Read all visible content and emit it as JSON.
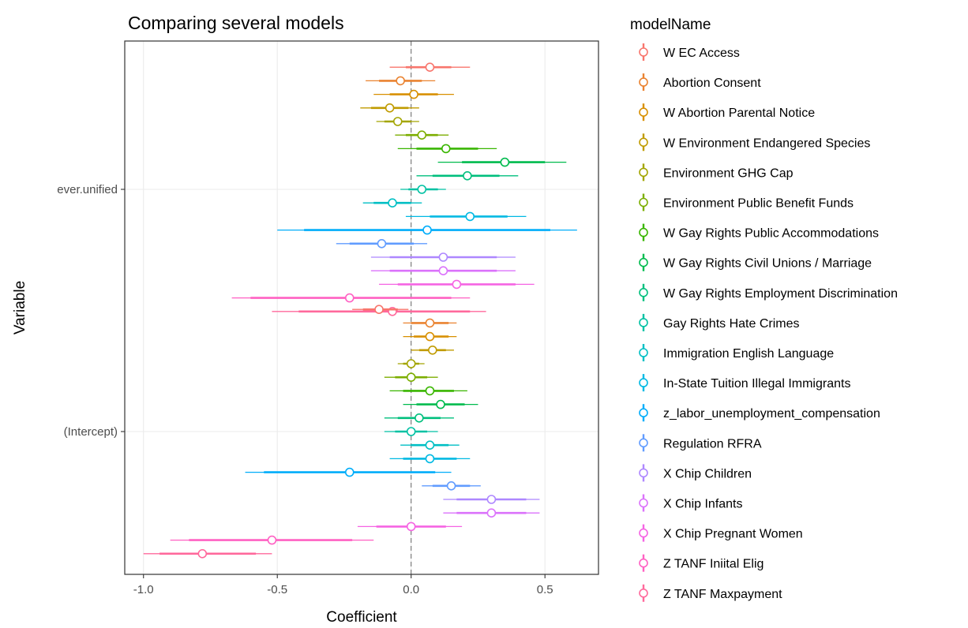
{
  "chart_data": {
    "type": "scatter",
    "title": "Comparing several models",
    "xlabel": "Coefficient",
    "ylabel": "Variable",
    "xlim": [
      -1.07,
      0.7
    ],
    "xticks": [
      -1.0,
      -0.5,
      0.0,
      0.5
    ],
    "xtick_labels": [
      "-1.0",
      "-0.5",
      "0.0",
      "0.5"
    ],
    "categories": [
      "ever.unified",
      "(Intercept)"
    ],
    "reference_line": 0,
    "grid": true,
    "legend_title": "modelName",
    "legend_position": "right",
    "series": [
      {
        "name": "W EC Access",
        "color": "#F8766D",
        "estimates": [
          0.07,
          -0.12
        ],
        "inner": [
          [
            -0.02,
            0.15
          ],
          [
            -0.18,
            -0.05
          ]
        ],
        "outer": [
          [
            -0.08,
            0.22
          ],
          [
            -0.22,
            -0.01
          ]
        ]
      },
      {
        "name": "Abortion Consent",
        "color": "#EA8331",
        "estimates": [
          -0.04,
          0.07
        ],
        "inner": [
          [
            -0.12,
            0.04
          ],
          [
            0.0,
            0.14
          ]
        ],
        "outer": [
          [
            -0.17,
            0.09
          ],
          [
            -0.03,
            0.17
          ]
        ]
      },
      {
        "name": "W Abortion Parental Notice",
        "color": "#D89000",
        "estimates": [
          0.01,
          0.07
        ],
        "inner": [
          [
            -0.08,
            0.1
          ],
          [
            0.01,
            0.14
          ]
        ],
        "outer": [
          [
            -0.14,
            0.16
          ],
          [
            -0.03,
            0.17
          ]
        ]
      },
      {
        "name": "W Environment Endangered Species",
        "color": "#C09B00",
        "estimates": [
          -0.08,
          0.08
        ],
        "inner": [
          [
            -0.15,
            -0.01
          ],
          [
            0.03,
            0.13
          ]
        ],
        "outer": [
          [
            -0.19,
            0.03
          ],
          [
            0.0,
            0.16
          ]
        ]
      },
      {
        "name": "Environment GHG Cap",
        "color": "#A3A500",
        "estimates": [
          -0.05,
          0.0
        ],
        "inner": [
          [
            -0.1,
            0.0
          ],
          [
            -0.03,
            0.03
          ]
        ],
        "outer": [
          [
            -0.13,
            0.03
          ],
          [
            -0.05,
            0.05
          ]
        ]
      },
      {
        "name": "Environment Public Benefit Funds",
        "color": "#7CAE00",
        "estimates": [
          0.04,
          0.0
        ],
        "inner": [
          [
            -0.02,
            0.1
          ],
          [
            -0.06,
            0.06
          ]
        ],
        "outer": [
          [
            -0.06,
            0.14
          ],
          [
            -0.1,
            0.1
          ]
        ]
      },
      {
        "name": "W Gay Rights Public Accommodations",
        "color": "#39B600",
        "estimates": [
          0.13,
          0.07
        ],
        "inner": [
          [
            0.02,
            0.25
          ],
          [
            -0.03,
            0.16
          ]
        ],
        "outer": [
          [
            -0.05,
            0.32
          ],
          [
            -0.08,
            0.21
          ]
        ]
      },
      {
        "name": "W Gay Rights Civil Unions / Marriage",
        "color": "#00BB4E",
        "estimates": [
          0.35,
          0.11
        ],
        "inner": [
          [
            0.19,
            0.5
          ],
          [
            0.02,
            0.2
          ]
        ],
        "outer": [
          [
            0.1,
            0.58
          ],
          [
            -0.03,
            0.25
          ]
        ]
      },
      {
        "name": "W Gay Rights Employment Discrimination",
        "color": "#00BF7D",
        "estimates": [
          0.21,
          0.03
        ],
        "inner": [
          [
            0.08,
            0.33
          ],
          [
            -0.05,
            0.11
          ]
        ],
        "outer": [
          [
            0.02,
            0.4
          ],
          [
            -0.1,
            0.16
          ]
        ]
      },
      {
        "name": "Gay Rights Hate Crimes",
        "color": "#00C1A3",
        "estimates": [
          0.04,
          0.0
        ],
        "inner": [
          [
            -0.01,
            0.1
          ],
          [
            -0.06,
            0.06
          ]
        ],
        "outer": [
          [
            -0.04,
            0.13
          ],
          [
            -0.1,
            0.1
          ]
        ]
      },
      {
        "name": "Immigration English Language",
        "color": "#00BFC4",
        "estimates": [
          -0.07,
          0.07
        ],
        "inner": [
          [
            -0.14,
            0.0
          ],
          [
            0.0,
            0.14
          ]
        ],
        "outer": [
          [
            -0.18,
            0.04
          ],
          [
            -0.04,
            0.18
          ]
        ]
      },
      {
        "name": "In-State Tuition Illegal Immigrants",
        "color": "#00B9E3",
        "estimates": [
          0.22,
          0.07
        ],
        "inner": [
          [
            0.07,
            0.36
          ],
          [
            -0.03,
            0.17
          ]
        ],
        "outer": [
          [
            -0.02,
            0.43
          ],
          [
            -0.08,
            0.22
          ]
        ]
      },
      {
        "name": "z_labor_unemployment_compensation",
        "color": "#00ADFA",
        "estimates": [
          0.06,
          -0.23
        ],
        "inner": [
          [
            -0.4,
            0.52
          ],
          [
            -0.55,
            0.09
          ]
        ],
        "outer": [
          [
            -0.5,
            0.62
          ],
          [
            -0.62,
            0.15
          ]
        ]
      },
      {
        "name": "Regulation RFRA",
        "color": "#619CFF",
        "estimates": [
          -0.11,
          0.15
        ],
        "inner": [
          [
            -0.23,
            0.01
          ],
          [
            0.08,
            0.22
          ]
        ],
        "outer": [
          [
            -0.28,
            0.06
          ],
          [
            0.04,
            0.26
          ]
        ]
      },
      {
        "name": "X Chip Children",
        "color": "#AE87FF",
        "estimates": [
          0.12,
          0.3
        ],
        "inner": [
          [
            -0.08,
            0.32
          ],
          [
            0.17,
            0.43
          ]
        ],
        "outer": [
          [
            -0.15,
            0.39
          ],
          [
            0.12,
            0.48
          ]
        ]
      },
      {
        "name": "X Chip Infants",
        "color": "#DB72FB",
        "estimates": [
          0.12,
          0.3
        ],
        "inner": [
          [
            -0.08,
            0.32
          ],
          [
            0.17,
            0.43
          ]
        ],
        "outer": [
          [
            -0.15,
            0.39
          ],
          [
            0.12,
            0.48
          ]
        ]
      },
      {
        "name": "X Chip Pregnant Women",
        "color": "#F564E3",
        "estimates": [
          0.17,
          0.0
        ],
        "inner": [
          [
            -0.05,
            0.39
          ],
          [
            -0.13,
            0.13
          ]
        ],
        "outer": [
          [
            -0.12,
            0.46
          ],
          [
            -0.2,
            0.19
          ]
        ]
      },
      {
        "name": "Z TANF Iniital Elig",
        "color": "#FF61C3",
        "estimates": [
          -0.23,
          -0.52
        ],
        "inner": [
          [
            -0.6,
            0.15
          ],
          [
            -0.83,
            -0.22
          ]
        ],
        "outer": [
          [
            -0.67,
            0.22
          ],
          [
            -0.9,
            -0.14
          ]
        ]
      },
      {
        "name": "Z TANF Maxpayment",
        "color": "#FF699C",
        "estimates": [
          -0.07,
          -0.78
        ],
        "inner": [
          [
            -0.42,
            0.22
          ],
          [
            -0.94,
            -0.58
          ]
        ],
        "outer": [
          [
            -0.52,
            0.28
          ],
          [
            -1.0,
            -0.52
          ]
        ]
      }
    ]
  }
}
